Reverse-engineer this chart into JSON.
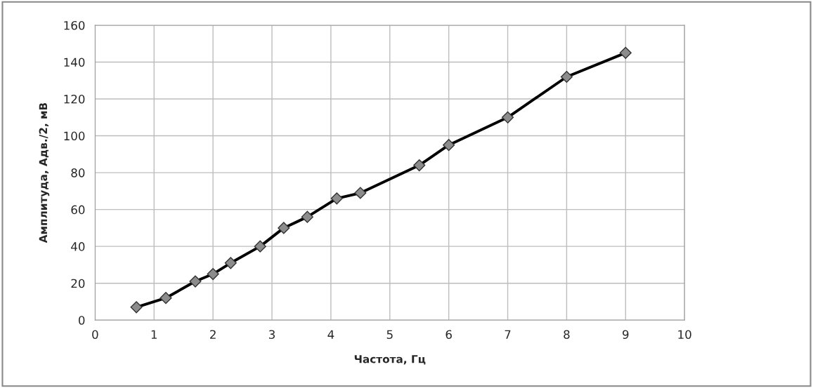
{
  "chart_data": {
    "type": "line",
    "xlabel": "Частота, Гц",
    "ylabel": "Амплитуда, Адв./2, мВ",
    "x": [
      0.7,
      1.2,
      1.7,
      2.0,
      2.3,
      2.8,
      3.2,
      3.6,
      4.1,
      4.5,
      5.5,
      6,
      7,
      8,
      9
    ],
    "series": [
      {
        "color": "#000000",
        "values": [
          7,
          12,
          21,
          25,
          31,
          40,
          50,
          56,
          66,
          69,
          84,
          95,
          110,
          132,
          145
        ]
      }
    ],
    "xlim": [
      0,
      10
    ],
    "xticks": [
      0,
      1,
      2,
      3,
      4,
      5,
      6,
      7,
      8,
      9,
      10
    ],
    "ylim": [
      0,
      160
    ],
    "yticks": [
      0,
      20,
      40,
      60,
      80,
      100,
      120,
      140,
      160
    ],
    "grid": true,
    "marker": "diamond",
    "line_style": "solid"
  }
}
